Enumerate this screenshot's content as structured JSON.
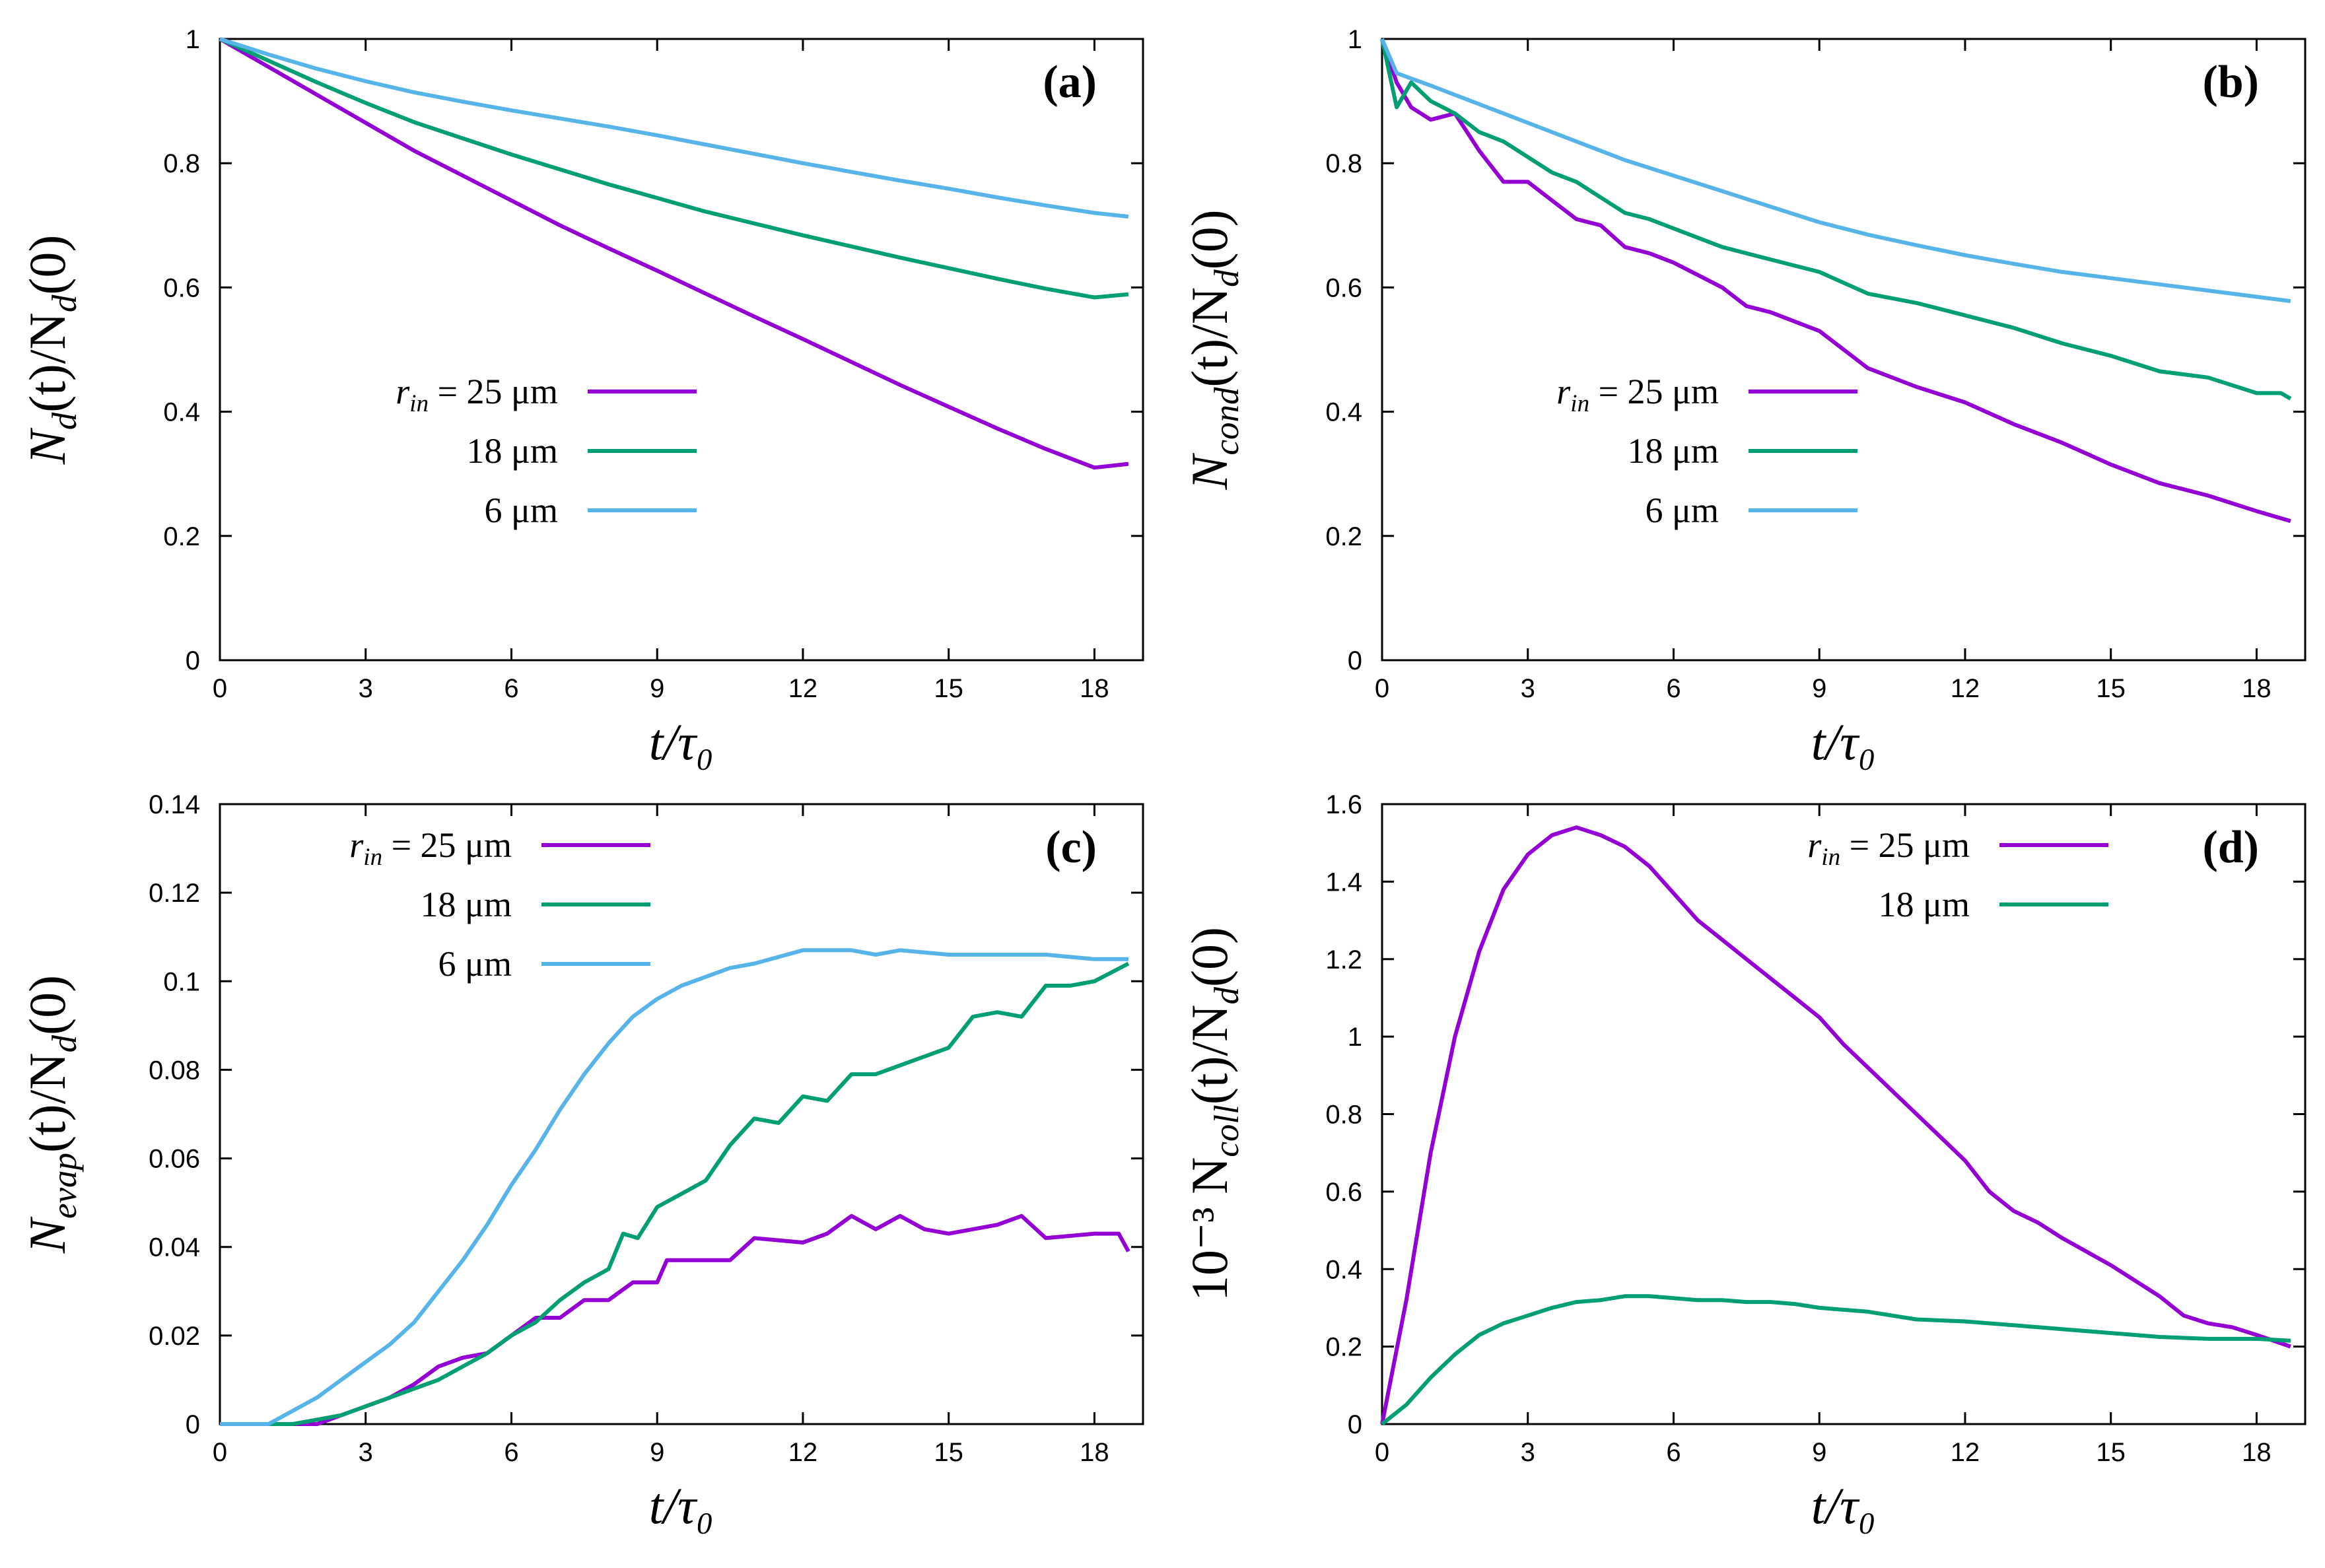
{
  "colors": {
    "r25": "#9400d3",
    "r18": "#009e73",
    "r6": "#56b4e9"
  },
  "chart_data": [
    {
      "id": "a",
      "type": "line",
      "panel_label": "(a)",
      "title": "",
      "xlabel": "t/τ₀",
      "ylabel": "N_d(t)/N_d(0)",
      "xlim": [
        0,
        19
      ],
      "ylim": [
        0,
        1
      ],
      "xticks": [
        "0",
        "3",
        "6",
        "9",
        "12",
        "15",
        "18"
      ],
      "yticks": [
        "0",
        "0.2",
        "0.4",
        "0.6",
        "0.8",
        "1"
      ],
      "ytick_values": [
        0,
        0.2,
        0.4,
        0.6,
        0.8,
        1
      ],
      "legend_position": "center-left",
      "series": [
        {
          "name": "r_in = 25 μm",
          "color_key": "r25",
          "x": [
            0,
            1,
            2,
            3,
            4,
            5,
            6,
            7,
            8,
            9,
            10,
            11,
            12,
            13,
            14,
            15,
            16,
            17,
            18,
            18.7
          ],
          "y": [
            1.0,
            0.955,
            0.91,
            0.865,
            0.82,
            0.78,
            0.74,
            0.7,
            0.663,
            0.627,
            0.59,
            0.553,
            0.517,
            0.48,
            0.443,
            0.408,
            0.373,
            0.34,
            0.31,
            0.316
          ]
        },
        {
          "name": "18 μm",
          "color_key": "r18",
          "x": [
            0,
            1,
            2,
            3,
            4,
            5,
            6,
            7,
            8,
            9,
            10,
            11,
            12,
            13,
            14,
            15,
            16,
            17,
            18,
            18.7
          ],
          "y": [
            1.0,
            0.965,
            0.93,
            0.897,
            0.866,
            0.84,
            0.814,
            0.79,
            0.766,
            0.744,
            0.722,
            0.703,
            0.684,
            0.666,
            0.648,
            0.631,
            0.614,
            0.598,
            0.584,
            0.589
          ]
        },
        {
          "name": "6 μm",
          "color_key": "r6",
          "x": [
            0,
            1,
            2,
            3,
            4,
            5,
            6,
            7,
            8,
            9,
            10,
            11,
            12,
            13,
            14,
            15,
            16,
            17,
            18,
            18.7
          ],
          "y": [
            1.0,
            0.975,
            0.952,
            0.932,
            0.914,
            0.899,
            0.885,
            0.872,
            0.859,
            0.845,
            0.83,
            0.815,
            0.8,
            0.786,
            0.772,
            0.759,
            0.745,
            0.732,
            0.72,
            0.714
          ]
        }
      ]
    },
    {
      "id": "b",
      "type": "line",
      "panel_label": "(b)",
      "title": "",
      "xlabel": "t/τ₀",
      "ylabel": "N_cond(t)/N_d(0)",
      "xlim": [
        0,
        19
      ],
      "ylim": [
        0,
        1
      ],
      "xticks": [
        "0",
        "3",
        "6",
        "9",
        "12",
        "15",
        "18"
      ],
      "yticks": [
        "0",
        "0.2",
        "0.4",
        "0.6",
        "0.8",
        "1"
      ],
      "ytick_values": [
        0,
        0.2,
        0.4,
        0.6,
        0.8,
        1
      ],
      "legend_position": "center",
      "series": [
        {
          "name": "r_in = 25 μm",
          "color_key": "r25",
          "x": [
            0,
            0.3,
            0.6,
            1,
            1.5,
            2,
            2.5,
            3,
            3.5,
            4,
            4.5,
            5,
            5.5,
            6,
            6.5,
            7,
            7.5,
            8,
            8.5,
            9,
            10,
            11,
            12,
            13,
            14,
            15,
            16,
            17,
            18,
            18.7
          ],
          "y": [
            1.0,
            0.93,
            0.89,
            0.87,
            0.88,
            0.82,
            0.77,
            0.77,
            0.74,
            0.71,
            0.7,
            0.665,
            0.655,
            0.64,
            0.62,
            0.6,
            0.57,
            0.56,
            0.545,
            0.53,
            0.47,
            0.44,
            0.415,
            0.38,
            0.35,
            0.315,
            0.285,
            0.265,
            0.24,
            0.224
          ]
        },
        {
          "name": "18 μm",
          "color_key": "r18",
          "x": [
            0,
            0.3,
            0.6,
            1,
            1.5,
            2,
            2.5,
            3,
            3.5,
            4,
            4.5,
            5,
            5.5,
            6,
            7,
            8,
            9,
            10,
            11,
            12,
            13,
            14,
            15,
            16,
            17,
            18,
            18.5,
            18.7
          ],
          "y": [
            1.0,
            0.89,
            0.93,
            0.9,
            0.88,
            0.85,
            0.835,
            0.81,
            0.785,
            0.77,
            0.745,
            0.72,
            0.71,
            0.695,
            0.665,
            0.645,
            0.625,
            0.59,
            0.575,
            0.555,
            0.535,
            0.51,
            0.49,
            0.465,
            0.455,
            0.43,
            0.43,
            0.421
          ]
        },
        {
          "name": "6 μm",
          "color_key": "r6",
          "x": [
            0,
            0.3,
            1,
            2,
            3,
            4,
            5,
            6,
            7,
            8,
            9,
            10,
            11,
            12,
            13,
            14,
            15,
            16,
            17,
            18,
            18.7
          ],
          "y": [
            1.0,
            0.945,
            0.925,
            0.895,
            0.865,
            0.835,
            0.805,
            0.78,
            0.755,
            0.73,
            0.705,
            0.685,
            0.668,
            0.652,
            0.638,
            0.625,
            0.615,
            0.605,
            0.595,
            0.585,
            0.578
          ]
        }
      ]
    },
    {
      "id": "c",
      "type": "line",
      "panel_label": "(c)",
      "title": "",
      "xlabel": "t/τ₀",
      "ylabel": "N_evap(t)/N_d(0)",
      "xlim": [
        0,
        19
      ],
      "ylim": [
        0,
        0.14
      ],
      "xticks": [
        "0",
        "3",
        "6",
        "9",
        "12",
        "15",
        "18"
      ],
      "yticks": [
        "0",
        "0.02",
        "0.04",
        "0.06",
        "0.08",
        "0.1",
        "0.12",
        "0.14"
      ],
      "ytick_values": [
        0,
        0.02,
        0.04,
        0.06,
        0.08,
        0.1,
        0.12,
        0.14
      ],
      "legend_position": "top-left",
      "series": [
        {
          "name": "r_in = 25 μm",
          "color_key": "r25",
          "x": [
            0,
            2,
            2.5,
            3,
            3.5,
            4,
            4.5,
            5,
            5.5,
            6,
            6.5,
            7,
            7.5,
            8,
            8.5,
            9,
            9.2,
            10,
            10.5,
            11,
            12,
            12.5,
            13,
            13.5,
            14,
            14.5,
            15,
            16,
            16.5,
            17,
            18,
            18.5,
            18.7
          ],
          "y": [
            0,
            0,
            0.002,
            0.004,
            0.006,
            0.009,
            0.013,
            0.015,
            0.016,
            0.02,
            0.024,
            0.024,
            0.028,
            0.028,
            0.032,
            0.032,
            0.037,
            0.037,
            0.037,
            0.042,
            0.041,
            0.043,
            0.047,
            0.044,
            0.047,
            0.044,
            0.043,
            0.045,
            0.047,
            0.042,
            0.043,
            0.043,
            0.039
          ]
        },
        {
          "name": "18 μm",
          "color_key": "r18",
          "x": [
            0,
            1.5,
            2,
            2.5,
            3,
            3.5,
            4,
            4.5,
            5,
            5.5,
            6,
            6.5,
            7,
            7.5,
            8,
            8.3,
            8.6,
            9,
            9.5,
            10,
            10.5,
            11,
            11.5,
            12,
            12.5,
            13,
            13.5,
            14,
            14.5,
            15,
            15.5,
            16,
            16.5,
            17,
            17.5,
            18,
            18.7
          ],
          "y": [
            0,
            0,
            0.001,
            0.002,
            0.004,
            0.006,
            0.008,
            0.01,
            0.013,
            0.016,
            0.02,
            0.023,
            0.028,
            0.032,
            0.035,
            0.043,
            0.042,
            0.049,
            0.052,
            0.055,
            0.063,
            0.069,
            0.068,
            0.074,
            0.073,
            0.079,
            0.079,
            0.081,
            0.083,
            0.085,
            0.092,
            0.093,
            0.092,
            0.099,
            0.099,
            0.1,
            0.104
          ]
        },
        {
          "name": "6 μm",
          "color_key": "r6",
          "x": [
            0,
            1,
            1.5,
            2,
            2.5,
            3,
            3.5,
            4,
            4.5,
            5,
            5.5,
            6,
            6.5,
            7,
            7.5,
            8,
            8.5,
            9,
            9.5,
            10,
            10.5,
            11,
            12,
            13,
            13.5,
            14,
            15,
            16,
            17,
            18,
            18.7
          ],
          "y": [
            0,
            0,
            0.003,
            0.006,
            0.01,
            0.014,
            0.018,
            0.023,
            0.03,
            0.037,
            0.045,
            0.054,
            0.062,
            0.071,
            0.079,
            0.086,
            0.092,
            0.096,
            0.099,
            0.101,
            0.103,
            0.104,
            0.107,
            0.107,
            0.106,
            0.107,
            0.106,
            0.106,
            0.106,
            0.105,
            0.105
          ]
        }
      ]
    },
    {
      "id": "d",
      "type": "line",
      "panel_label": "(d)",
      "title": "",
      "xlabel": "t/τ₀",
      "ylabel": "10⁻³ N_coll(t)/N_d(0)",
      "xlim": [
        0,
        19
      ],
      "ylim": [
        0,
        1.6
      ],
      "xticks": [
        "0",
        "3",
        "6",
        "9",
        "12",
        "15",
        "18"
      ],
      "yticks": [
        "0",
        "0.2",
        "0.4",
        "0.6",
        "0.8",
        "1",
        "1.2",
        "1.4",
        "1.6"
      ],
      "ytick_values": [
        0,
        0.2,
        0.4,
        0.6,
        0.8,
        1,
        1.2,
        1.4,
        1.6
      ],
      "legend_position": "top-right",
      "series": [
        {
          "name": "r_in = 25 μm",
          "color_key": "r25",
          "x": [
            0,
            0.5,
            1,
            1.5,
            2,
            2.5,
            3,
            3.5,
            4,
            4.5,
            5,
            5.5,
            6,
            6.5,
            7,
            7.5,
            8,
            8.5,
            9,
            9.5,
            10,
            10.5,
            11,
            11.5,
            12,
            12.5,
            13,
            13.5,
            14,
            15,
            16,
            16.5,
            17,
            17.5,
            18,
            18.7
          ],
          "y": [
            0,
            0.32,
            0.7,
            1.0,
            1.22,
            1.38,
            1.47,
            1.52,
            1.54,
            1.52,
            1.49,
            1.44,
            1.37,
            1.3,
            1.25,
            1.2,
            1.15,
            1.1,
            1.05,
            0.98,
            0.92,
            0.86,
            0.8,
            0.74,
            0.68,
            0.6,
            0.55,
            0.52,
            0.48,
            0.41,
            0.33,
            0.28,
            0.26,
            0.25,
            0.23,
            0.2
          ]
        },
        {
          "name": "18 μm",
          "color_key": "r18",
          "x": [
            0,
            0.5,
            1,
            1.5,
            2,
            2.5,
            3,
            3.5,
            4,
            4.5,
            5,
            5.5,
            6,
            6.5,
            7,
            7.5,
            8,
            8.5,
            9,
            10,
            11,
            12,
            13,
            14,
            15,
            16,
            17,
            18,
            18.7
          ],
          "y": [
            0,
            0.05,
            0.12,
            0.18,
            0.23,
            0.26,
            0.28,
            0.3,
            0.315,
            0.32,
            0.33,
            0.33,
            0.325,
            0.32,
            0.32,
            0.315,
            0.315,
            0.31,
            0.3,
            0.29,
            0.27,
            0.265,
            0.255,
            0.245,
            0.235,
            0.225,
            0.22,
            0.22,
            0.215
          ]
        }
      ]
    }
  ]
}
